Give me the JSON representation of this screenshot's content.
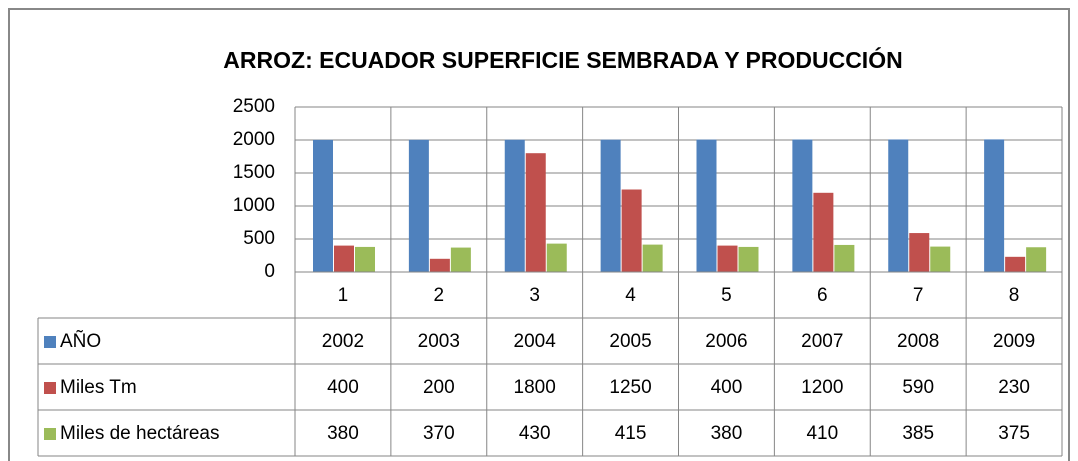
{
  "chart_data": {
    "type": "bar",
    "title": "ARROZ: ECUADOR SUPERFICIE SEMBRADA Y PRODUCCIÓN",
    "categories": [
      "1",
      "2",
      "3",
      "4",
      "5",
      "6",
      "7",
      "8"
    ],
    "series": [
      {
        "name": "AÑO",
        "color": "#4f81bd",
        "values": [
          2002,
          2003,
          2004,
          2005,
          2006,
          2007,
          2008,
          2009
        ]
      },
      {
        "name": "Miles Tm",
        "color": "#c0504d",
        "values": [
          400,
          200,
          1800,
          1250,
          400,
          1200,
          590,
          230
        ]
      },
      {
        "name": "Miles de hectáreas",
        "color": "#9bbb59",
        "values": [
          380,
          370,
          430,
          415,
          380,
          410,
          385,
          375
        ]
      }
    ],
    "ylim": [
      0,
      2500
    ],
    "yticks": [
      0,
      500,
      1000,
      1500,
      2000,
      2500
    ],
    "grid": true,
    "data_table": true
  }
}
